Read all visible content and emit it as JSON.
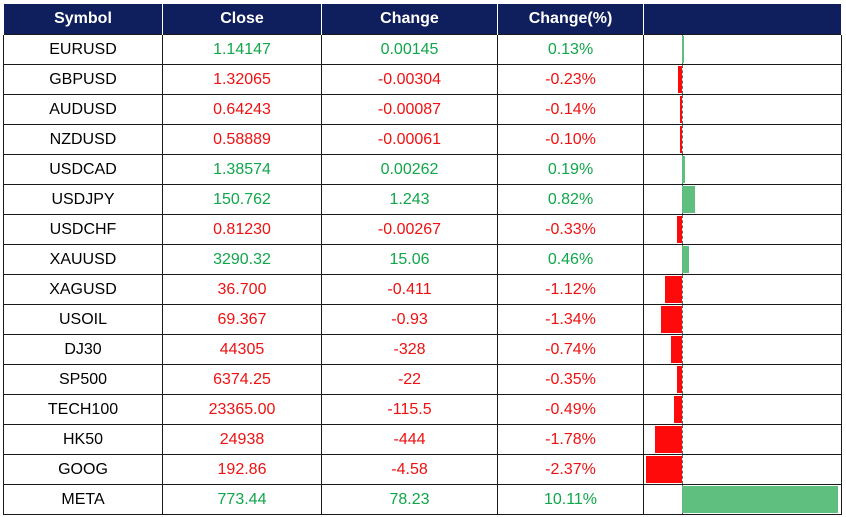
{
  "headers": {
    "symbol": "Symbol",
    "close": "Close",
    "change": "Change",
    "change_pct": "Change(%)",
    "bar": ""
  },
  "colors": {
    "header_bg": "#0f1e5c",
    "positive": "#10a64a",
    "negative": "#ee1111",
    "bar_positive": "#5fbf7f",
    "bar_negative": "#ff0a0a"
  },
  "rows": [
    {
      "symbol": "EURUSD",
      "close": "1.14147",
      "change": "0.00145",
      "change_pct": "0.13%",
      "pct": 0.13
    },
    {
      "symbol": "GBPUSD",
      "close": "1.32065",
      "change": "-0.00304",
      "change_pct": "-0.23%",
      "pct": -0.23
    },
    {
      "symbol": "AUDUSD",
      "close": "0.64243",
      "change": "-0.00087",
      "change_pct": "-0.14%",
      "pct": -0.14
    },
    {
      "symbol": "NZDUSD",
      "close": "0.58889",
      "change": "-0.00061",
      "change_pct": "-0.10%",
      "pct": -0.1
    },
    {
      "symbol": "USDCAD",
      "close": "1.38574",
      "change": "0.00262",
      "change_pct": "0.19%",
      "pct": 0.19
    },
    {
      "symbol": "USDJPY",
      "close": "150.762",
      "change": "1.243",
      "change_pct": "0.82%",
      "pct": 0.82
    },
    {
      "symbol": "USDCHF",
      "close": "0.81230",
      "change": "-0.00267",
      "change_pct": "-0.33%",
      "pct": -0.33
    },
    {
      "symbol": "XAUUSD",
      "close": "3290.32",
      "change": "15.06",
      "change_pct": "0.46%",
      "pct": 0.46
    },
    {
      "symbol": "XAGUSD",
      "close": "36.700",
      "change": "-0.411",
      "change_pct": "-1.12%",
      "pct": -1.12
    },
    {
      "symbol": "USOIL",
      "close": "69.367",
      "change": "-0.93",
      "change_pct": "-1.34%",
      "pct": -1.34
    },
    {
      "symbol": "DJ30",
      "close": "44305",
      "change": "-328",
      "change_pct": "-0.74%",
      "pct": -0.74
    },
    {
      "symbol": "SP500",
      "close": "6374.25",
      "change": "-22",
      "change_pct": "-0.35%",
      "pct": -0.35
    },
    {
      "symbol": "TECH100",
      "close": "23365.00",
      "change": "-115.5",
      "change_pct": "-0.49%",
      "pct": -0.49
    },
    {
      "symbol": "HK50",
      "close": "24938",
      "change": "-444",
      "change_pct": "-1.78%",
      "pct": -1.78
    },
    {
      "symbol": "GOOG",
      "close": "192.86",
      "change": "-4.58",
      "change_pct": "-2.37%",
      "pct": -2.37
    },
    {
      "symbol": "META",
      "close": "773.44",
      "change": "78.23",
      "change_pct": "10.11%",
      "pct": 10.11
    }
  ]
}
